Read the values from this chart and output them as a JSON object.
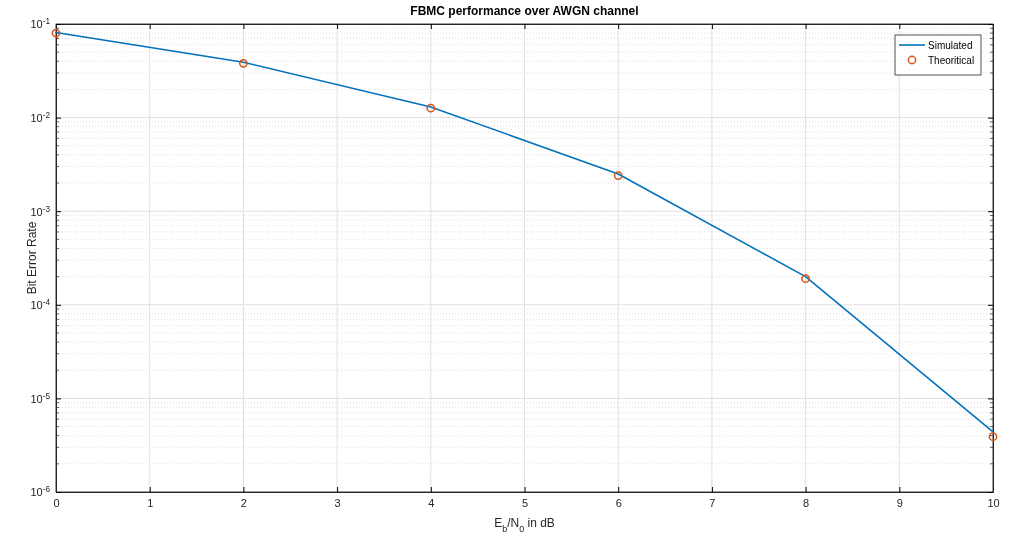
{
  "chart_data": {
    "type": "line",
    "title": "FBMC performance over AWGN channel",
    "xlabel": "E$_{b}$/N$_{0}$ in dB",
    "ylabel": "Bit Error Rate",
    "x": [
      0,
      2,
      4,
      6,
      8,
      10
    ],
    "series": [
      {
        "name": "Simulated",
        "color": "#0072bd",
        "marker": "none",
        "line_style": "solid",
        "values": [
          0.081,
          0.039,
          0.013,
          0.0025,
          0.0002,
          4.4e-06
        ]
      },
      {
        "name": "Theoritical",
        "type": "scatter",
        "color": "#d95319",
        "marker": "circle",
        "values": [
          0.08,
          0.038,
          0.0126,
          0.0024,
          0.00019,
          3.9e-06
        ]
      }
    ],
    "xlim": [
      0,
      10
    ],
    "xticks": [
      0,
      1,
      2,
      3,
      4,
      5,
      6,
      7,
      8,
      9,
      10
    ],
    "ylim": [
      1e-06,
      0.1
    ],
    "yticks": [
      {
        "value": 1e-06,
        "label": "10$^{-6}$"
      },
      {
        "value": 1e-05,
        "label": "10$^{-5}$"
      },
      {
        "value": 0.0001,
        "label": "10$^{-4}$"
      },
      {
        "value": 0.001,
        "label": "10$^{-3}$"
      },
      {
        "value": 0.01,
        "label": "10$^{-2}$"
      },
      {
        "value": 0.1,
        "label": "10$^{-1}$"
      }
    ],
    "log": "y",
    "grid": true,
    "legend": "top right"
  }
}
